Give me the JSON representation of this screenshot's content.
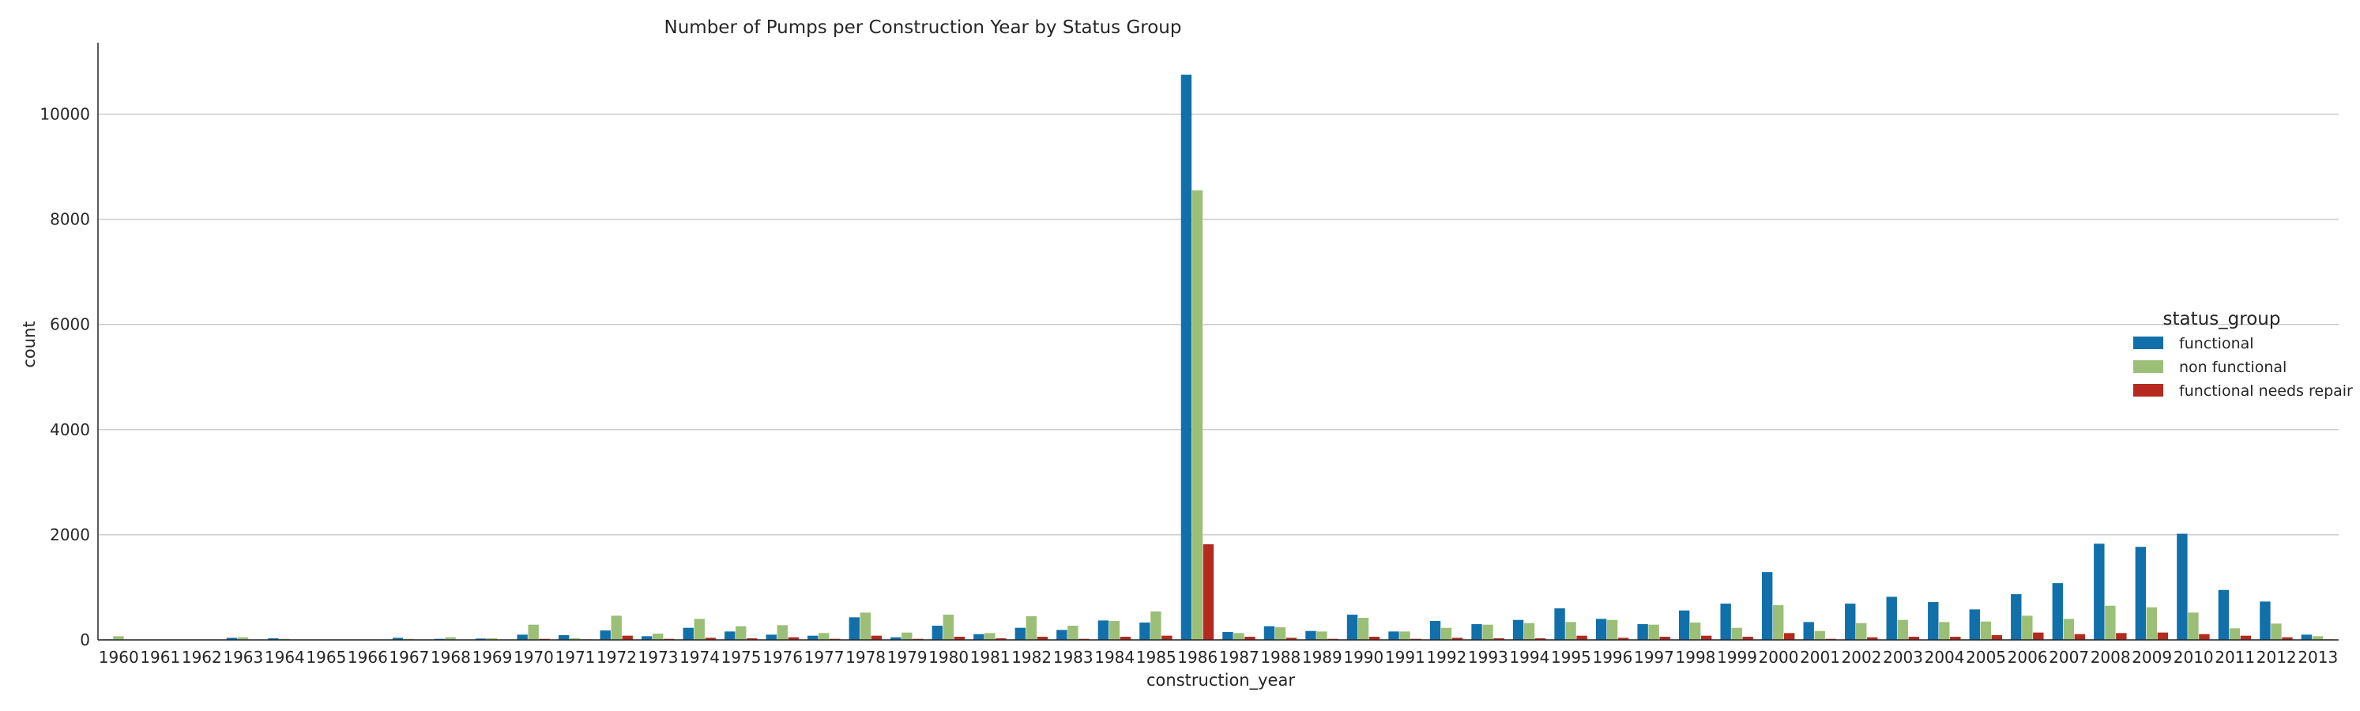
{
  "chart_data": {
    "type": "bar",
    "title": "Number of Pumps per Construction Year by Status Group",
    "xlabel": "construction_year",
    "ylabel": "count",
    "ylim": [
      0,
      11300
    ],
    "yticks": [
      0,
      2000,
      4000,
      6000,
      8000,
      10000
    ],
    "grid": "horizontal",
    "legend_position": "right",
    "legend_title": "status_group",
    "categories": [
      "1960",
      "1961",
      "1962",
      "1963",
      "1964",
      "1965",
      "1966",
      "1967",
      "1968",
      "1969",
      "1970",
      "1971",
      "1972",
      "1973",
      "1974",
      "1975",
      "1976",
      "1977",
      "1978",
      "1979",
      "1980",
      "1981",
      "1982",
      "1983",
      "1984",
      "1985",
      "1986",
      "1987",
      "1988",
      "1989",
      "1990",
      "1991",
      "1992",
      "1993",
      "1994",
      "1995",
      "1996",
      "1997",
      "1998",
      "1999",
      "2000",
      "2001",
      "2002",
      "2003",
      "2004",
      "2005",
      "2006",
      "2007",
      "2008",
      "2009",
      "2010",
      "2011",
      "2012",
      "2013"
    ],
    "series": [
      {
        "name": "functional",
        "color": "#1170aa",
        "values": [
          10,
          5,
          5,
          40,
          30,
          5,
          5,
          40,
          20,
          25,
          100,
          90,
          180,
          70,
          230,
          160,
          100,
          80,
          430,
          50,
          270,
          110,
          230,
          190,
          370,
          330,
          10750,
          150,
          260,
          170,
          480,
          160,
          360,
          300,
          380,
          600,
          400,
          300,
          560,
          690,
          1290,
          340,
          690,
          820,
          720,
          580,
          870,
          1080,
          1830,
          1770,
          2020,
          950,
          730,
          100
        ]
      },
      {
        "name": "non functional",
        "color": "#9bbf77",
        "values": [
          70,
          5,
          5,
          50,
          20,
          5,
          5,
          20,
          50,
          30,
          290,
          30,
          460,
          120,
          400,
          260,
          280,
          130,
          520,
          140,
          480,
          130,
          450,
          270,
          360,
          540,
          8550,
          130,
          240,
          160,
          420,
          160,
          230,
          290,
          320,
          340,
          380,
          290,
          330,
          230,
          660,
          170,
          320,
          380,
          340,
          350,
          460,
          400,
          650,
          620,
          520,
          220,
          310,
          70
        ]
      },
      {
        "name": "functional needs repair",
        "color": "#b5291f",
        "values": [
          3,
          2,
          2,
          5,
          5,
          2,
          2,
          5,
          5,
          5,
          20,
          10,
          80,
          20,
          40,
          30,
          50,
          20,
          80,
          20,
          60,
          30,
          60,
          20,
          60,
          80,
          1820,
          60,
          40,
          20,
          60,
          20,
          40,
          30,
          30,
          80,
          40,
          60,
          80,
          60,
          130,
          20,
          50,
          60,
          60,
          90,
          140,
          110,
          130,
          140,
          110,
          80,
          50,
          10
        ]
      }
    ]
  }
}
